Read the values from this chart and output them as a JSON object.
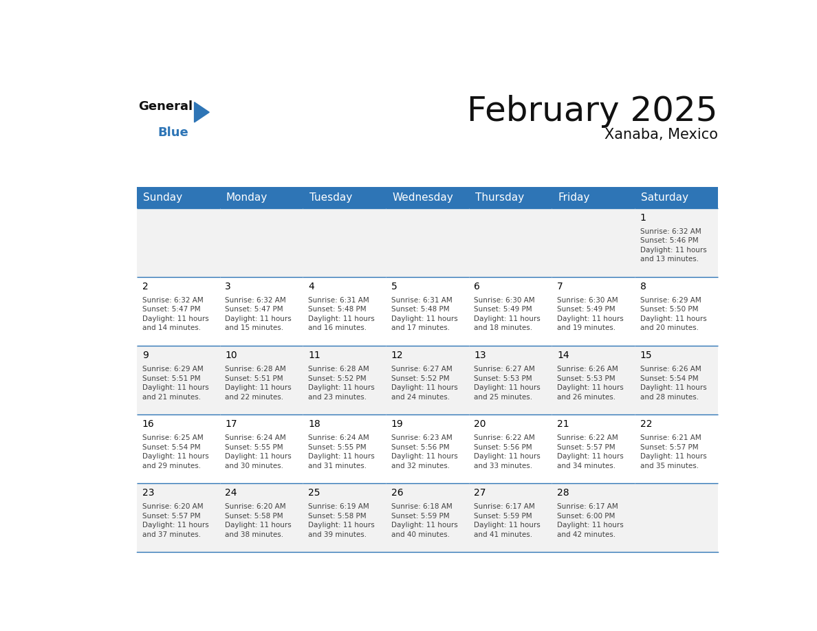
{
  "title": "February 2025",
  "subtitle": "Xanaba, Mexico",
  "header_color": "#2E75B6",
  "header_text_color": "#FFFFFF",
  "day_names": [
    "Sunday",
    "Monday",
    "Tuesday",
    "Wednesday",
    "Thursday",
    "Friday",
    "Saturday"
  ],
  "bg_color": "#FFFFFF",
  "cell_bg_white": "#FFFFFF",
  "cell_bg_gray": "#F2F2F2",
  "cell_border_color": "#2E75B6",
  "day_number_color": "#000000",
  "day_info_color": "#404040",
  "calendar": [
    [
      null,
      null,
      null,
      null,
      null,
      null,
      {
        "day": 1,
        "sunrise": "6:32 AM",
        "sunset": "5:46 PM",
        "daylight": "11 hours and 13 minutes"
      }
    ],
    [
      {
        "day": 2,
        "sunrise": "6:32 AM",
        "sunset": "5:47 PM",
        "daylight": "11 hours and 14 minutes"
      },
      {
        "day": 3,
        "sunrise": "6:32 AM",
        "sunset": "5:47 PM",
        "daylight": "11 hours and 15 minutes"
      },
      {
        "day": 4,
        "sunrise": "6:31 AM",
        "sunset": "5:48 PM",
        "daylight": "11 hours and 16 minutes"
      },
      {
        "day": 5,
        "sunrise": "6:31 AM",
        "sunset": "5:48 PM",
        "daylight": "11 hours and 17 minutes"
      },
      {
        "day": 6,
        "sunrise": "6:30 AM",
        "sunset": "5:49 PM",
        "daylight": "11 hours and 18 minutes"
      },
      {
        "day": 7,
        "sunrise": "6:30 AM",
        "sunset": "5:49 PM",
        "daylight": "11 hours and 19 minutes"
      },
      {
        "day": 8,
        "sunrise": "6:29 AM",
        "sunset": "5:50 PM",
        "daylight": "11 hours and 20 minutes"
      }
    ],
    [
      {
        "day": 9,
        "sunrise": "6:29 AM",
        "sunset": "5:51 PM",
        "daylight": "11 hours and 21 minutes"
      },
      {
        "day": 10,
        "sunrise": "6:28 AM",
        "sunset": "5:51 PM",
        "daylight": "11 hours and 22 minutes"
      },
      {
        "day": 11,
        "sunrise": "6:28 AM",
        "sunset": "5:52 PM",
        "daylight": "11 hours and 23 minutes"
      },
      {
        "day": 12,
        "sunrise": "6:27 AM",
        "sunset": "5:52 PM",
        "daylight": "11 hours and 24 minutes"
      },
      {
        "day": 13,
        "sunrise": "6:27 AM",
        "sunset": "5:53 PM",
        "daylight": "11 hours and 25 minutes"
      },
      {
        "day": 14,
        "sunrise": "6:26 AM",
        "sunset": "5:53 PM",
        "daylight": "11 hours and 26 minutes"
      },
      {
        "day": 15,
        "sunrise": "6:26 AM",
        "sunset": "5:54 PM",
        "daylight": "11 hours and 28 minutes"
      }
    ],
    [
      {
        "day": 16,
        "sunrise": "6:25 AM",
        "sunset": "5:54 PM",
        "daylight": "11 hours and 29 minutes"
      },
      {
        "day": 17,
        "sunrise": "6:24 AM",
        "sunset": "5:55 PM",
        "daylight": "11 hours and 30 minutes"
      },
      {
        "day": 18,
        "sunrise": "6:24 AM",
        "sunset": "5:55 PM",
        "daylight": "11 hours and 31 minutes"
      },
      {
        "day": 19,
        "sunrise": "6:23 AM",
        "sunset": "5:56 PM",
        "daylight": "11 hours and 32 minutes"
      },
      {
        "day": 20,
        "sunrise": "6:22 AM",
        "sunset": "5:56 PM",
        "daylight": "11 hours and 33 minutes"
      },
      {
        "day": 21,
        "sunrise": "6:22 AM",
        "sunset": "5:57 PM",
        "daylight": "11 hours and 34 minutes"
      },
      {
        "day": 22,
        "sunrise": "6:21 AM",
        "sunset": "5:57 PM",
        "daylight": "11 hours and 35 minutes"
      }
    ],
    [
      {
        "day": 23,
        "sunrise": "6:20 AM",
        "sunset": "5:57 PM",
        "daylight": "11 hours and 37 minutes"
      },
      {
        "day": 24,
        "sunrise": "6:20 AM",
        "sunset": "5:58 PM",
        "daylight": "11 hours and 38 minutes"
      },
      {
        "day": 25,
        "sunrise": "6:19 AM",
        "sunset": "5:58 PM",
        "daylight": "11 hours and 39 minutes"
      },
      {
        "day": 26,
        "sunrise": "6:18 AM",
        "sunset": "5:59 PM",
        "daylight": "11 hours and 40 minutes"
      },
      {
        "day": 27,
        "sunrise": "6:17 AM",
        "sunset": "5:59 PM",
        "daylight": "11 hours and 41 minutes"
      },
      {
        "day": 28,
        "sunrise": "6:17 AM",
        "sunset": "6:00 PM",
        "daylight": "11 hours and 42 minutes"
      },
      null
    ]
  ],
  "logo_text_general": "General",
  "logo_text_blue": "Blue",
  "title_fontsize": 36,
  "subtitle_fontsize": 15,
  "header_fontsize": 11,
  "day_num_fontsize": 10,
  "day_info_fontsize": 7.5
}
